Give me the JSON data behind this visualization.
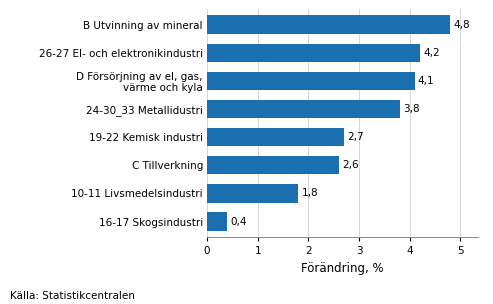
{
  "categories": [
    "16-17 Skogsindustri",
    "10-11 Livsmedelsindustri",
    "C Tillverkning",
    "19-22 Kemisk industri",
    "24-30_33 Metallidustri",
    "D Försörjning av el, gas,\nvärme och kyla",
    "26-27 El- och elektronikindustri",
    "B Utvinning av mineral"
  ],
  "values": [
    0.4,
    1.8,
    2.6,
    2.7,
    3.8,
    4.1,
    4.2,
    4.8
  ],
  "bar_color": "#1a6faf",
  "xlabel": "Förändring, %",
  "xlim": [
    0,
    5.35
  ],
  "xticks": [
    0,
    1,
    2,
    3,
    4,
    5
  ],
  "footnote": "Källa: Statistikcentralen",
  "value_labels": [
    "0,4",
    "1,8",
    "2,6",
    "2,7",
    "3,8",
    "4,1",
    "4,2",
    "4,8"
  ],
  "bar_height": 0.65,
  "fontsize_labels": 7.5,
  "fontsize_values": 7.5,
  "fontsize_xlabel": 8.5,
  "fontsize_footnote": 7.5,
  "fontsize_ticks": 7.5
}
